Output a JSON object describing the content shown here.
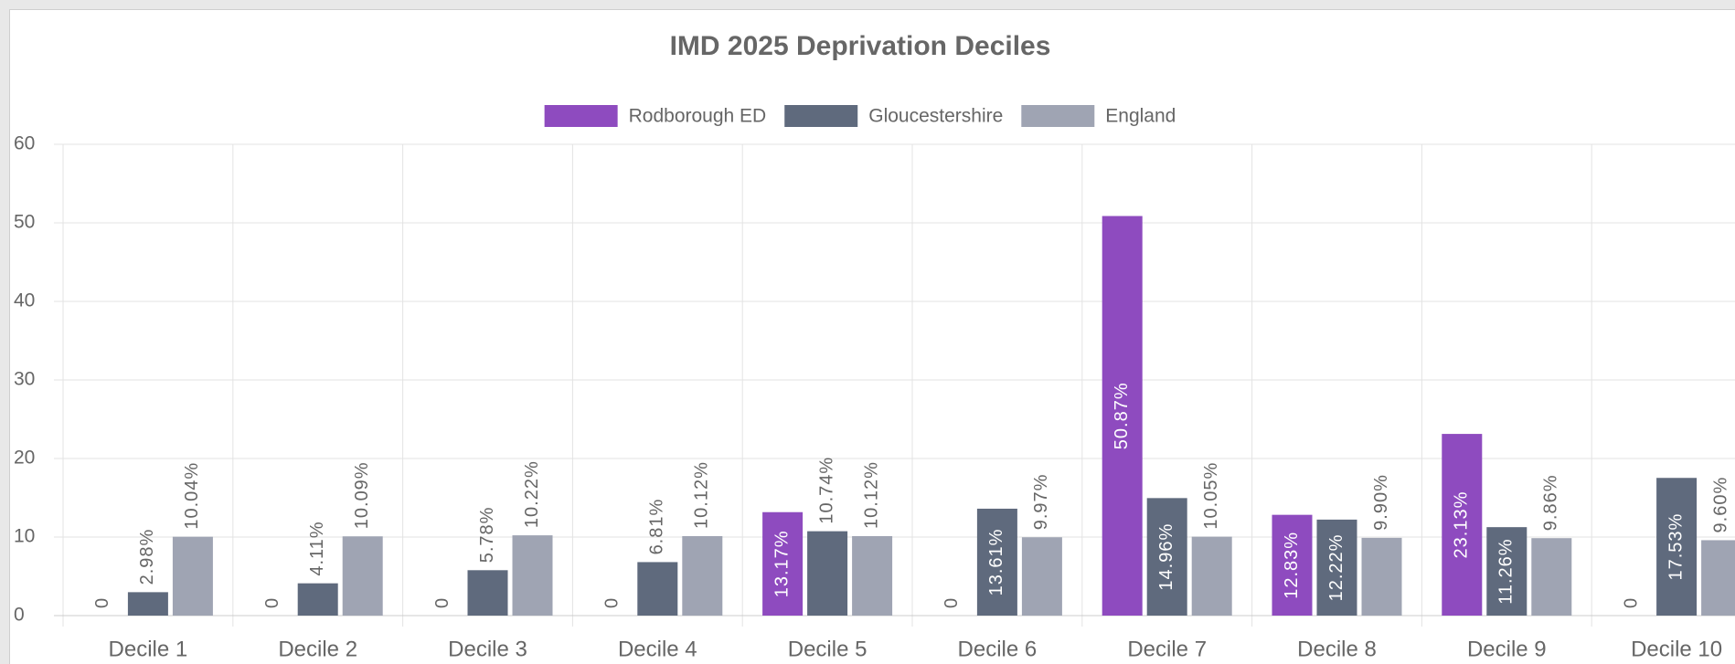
{
  "chart_data": {
    "type": "bar",
    "title": "IMD 2025 Deprivation Deciles",
    "categories": [
      "Decile 1",
      "Decile 2",
      "Decile 3",
      "Decile 4",
      "Decile 5",
      "Decile 6",
      "Decile 7",
      "Decile 8",
      "Decile 9",
      "Decile 10"
    ],
    "series": [
      {
        "name": "Rodborough ED",
        "color": "#8e4bbf",
        "values": [
          0,
          0,
          0,
          0,
          13.17,
          0,
          50.87,
          12.83,
          23.13,
          0
        ],
        "value_labels": [
          "0",
          "0",
          "0",
          "0",
          "13.17%",
          "0",
          "50.87%",
          "12.83%",
          "23.13%",
          "0"
        ]
      },
      {
        "name": "Gloucestershire",
        "color": "#5f6a7d",
        "values": [
          2.98,
          4.11,
          5.78,
          6.81,
          10.74,
          13.61,
          14.96,
          12.22,
          11.26,
          17.53
        ],
        "value_labels": [
          "2.98%",
          "4.11%",
          "5.78%",
          "6.81%",
          "10.74%",
          "13.61%",
          "14.96%",
          "12.22%",
          "11.26%",
          "17.53%"
        ]
      },
      {
        "name": "England",
        "color": "#9fa4b3",
        "values": [
          10.04,
          10.09,
          10.22,
          10.12,
          10.12,
          9.97,
          10.05,
          9.9,
          9.86,
          9.6
        ],
        "value_labels": [
          "10.04%",
          "10.09%",
          "10.22%",
          "10.12%",
          "10.12%",
          "9.97%",
          "10.05%",
          "9.90%",
          "9.86%",
          "9.60%"
        ]
      }
    ],
    "ylim": [
      0,
      60
    ],
    "yticks": [
      0,
      10,
      20,
      30,
      40,
      50,
      60
    ],
    "grid": true,
    "legend": "top"
  }
}
